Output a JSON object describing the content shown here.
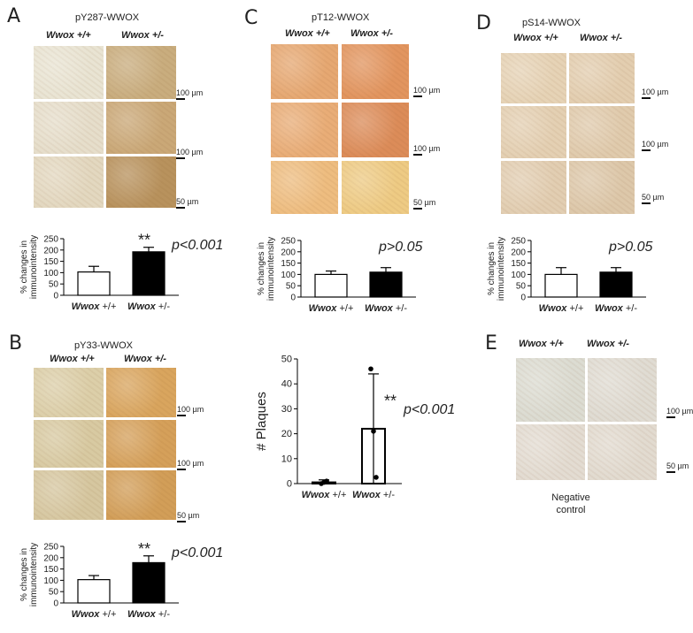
{
  "panels": {
    "A": {
      "letter": "A",
      "title": "pY287-WWOX",
      "left_label": "Wwox +/+",
      "right_label": "Wwox +/-",
      "scale_labels": [
        "100 µm",
        "100 µm",
        "50 µm"
      ]
    },
    "B": {
      "letter": "B",
      "title": "pY33-WWOX",
      "left_label": "Wwox +/+",
      "right_label": "Wwox +/-",
      "scale_labels": [
        "100 µm",
        "100 µm",
        "50 µm"
      ]
    },
    "C": {
      "letter": "C",
      "title": "pT12-WWOX",
      "left_label": "Wwox +/+",
      "right_label": "Wwox +/-",
      "scale_labels": [
        "100 µm",
        "100 µm",
        "50 µm"
      ]
    },
    "D": {
      "letter": "D",
      "title": "pS14-WWOX",
      "left_label": "Wwox +/+",
      "right_label": "Wwox +/-",
      "scale_labels": [
        "100 µm",
        "100 µm",
        "50 µm"
      ]
    },
    "E": {
      "letter": "E",
      "left_label": "Wwox +/+",
      "right_label": "Wwox +/-",
      "scale_labels": [
        "100 µm",
        "50 µm"
      ],
      "caption_line1": "Negative",
      "caption_line2": "control"
    }
  },
  "tissue_colors": {
    "A": [
      [
        "#e9e4d3",
        "#c9ad7e"
      ],
      [
        "#e6decb",
        "#caa877"
      ],
      [
        "#e3d8c0",
        "#b8925d"
      ]
    ],
    "B": [
      [
        "#dccfa9",
        "#d9a55e"
      ],
      [
        "#d8caa2",
        "#d5a05a"
      ],
      [
        "#d6c7a0",
        "#d29e58"
      ]
    ],
    "C": [
      [
        "#e6a872",
        "#e2955f"
      ],
      [
        "#e9ad77",
        "#dc8c59"
      ],
      [
        "#eebd80",
        "#eecb84"
      ]
    ],
    "D": [
      [
        "#e6d3b6",
        "#e3ceb0"
      ],
      [
        "#e4d0b3",
        "#e0cbad"
      ],
      [
        "#e2ceb2",
        "#ddc8aa"
      ]
    ],
    "E": [
      [
        "#dcdcd2",
        "#e0dcd3"
      ],
      [
        "#e3dcd2",
        "#e2dbd0"
      ]
    ]
  },
  "chart_data": [
    {
      "id": "A",
      "type": "bar",
      "categories": [
        "Wwox +/+",
        "Wwox +/-"
      ],
      "values": [
        103,
        192
      ],
      "errors": [
        25,
        20
      ],
      "fills": [
        "#ffffff",
        "#000000"
      ],
      "ylabel": "% changes in immunointensity",
      "ylim": [
        0,
        250
      ],
      "yticks": [
        "0",
        "50",
        "100",
        "150",
        "200",
        "250"
      ],
      "stars": "**",
      "pvalue": "p<0.001"
    },
    {
      "id": "B",
      "type": "bar",
      "categories": [
        "Wwox +/+",
        "Wwox +/-"
      ],
      "values": [
        103,
        178
      ],
      "errors": [
        18,
        30
      ],
      "fills": [
        "#ffffff",
        "#000000"
      ],
      "ylabel": "% changes in immunointensity",
      "ylim": [
        0,
        250
      ],
      "yticks": [
        "0",
        "50",
        "100",
        "150",
        "200",
        "250"
      ],
      "stars": "**",
      "pvalue": "p<0.001"
    },
    {
      "id": "C",
      "type": "bar",
      "categories": [
        "Wwox +/+",
        "Wwox +/-"
      ],
      "values": [
        100,
        110
      ],
      "errors": [
        15,
        20
      ],
      "fills": [
        "#ffffff",
        "#000000"
      ],
      "ylabel": "% changes in immunointensity",
      "ylim": [
        0,
        250
      ],
      "yticks": [
        "0",
        "50",
        "100",
        "150",
        "200",
        "250"
      ],
      "stars": "",
      "pvalue": "p>0.05"
    },
    {
      "id": "D",
      "type": "bar",
      "categories": [
        "Wwox +/+",
        "Wwox +/-"
      ],
      "values": [
        100,
        110
      ],
      "errors": [
        30,
        20
      ],
      "fills": [
        "#ffffff",
        "#000000"
      ],
      "ylabel": "% changes in immunointensity",
      "ylim": [
        0,
        250
      ],
      "yticks": [
        "0",
        "50",
        "100",
        "150",
        "200",
        "250"
      ],
      "stars": "",
      "pvalue": "p>0.05"
    },
    {
      "id": "plaques",
      "type": "bar",
      "categories": [
        "Wwox +/+",
        "Wwox +/-"
      ],
      "values": [
        0.5,
        22
      ],
      "errors": [
        1,
        22
      ],
      "points": [
        [
          0,
          0.5,
          1
        ],
        [
          46,
          21,
          2.5
        ]
      ],
      "fills": [
        "#ffffff",
        "#ffffff"
      ],
      "ylabel": "# Plaques",
      "ylim": [
        0,
        50
      ],
      "yticks": [
        "0",
        "10",
        "20",
        "30",
        "40",
        "50"
      ],
      "stars": "**",
      "pvalue": "p<0.001"
    }
  ]
}
